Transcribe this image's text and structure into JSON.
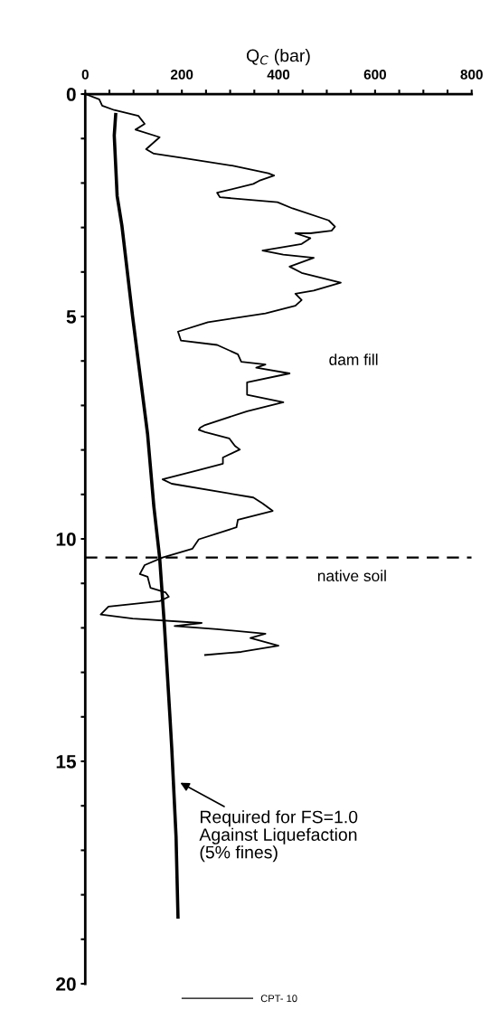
{
  "chart_data": {
    "type": "line",
    "xlabel": "Q$_{C}$ (bar)",
    "xlim": [
      0,
      800
    ],
    "xticks": [
      0,
      {
        "value": 50,
        "label": null
      },
      {
        "value": 100,
        "label": null
      },
      {
        "value": 150,
        "label": null
      },
      200,
      {
        "value": 250,
        "label": null
      },
      {
        "value": 300,
        "label": null
      },
      {
        "value": 350,
        "label": null
      },
      400,
      {
        "value": 450,
        "label": null
      },
      {
        "value": 500,
        "label": null
      },
      {
        "value": 550,
        "label": null
      },
      600,
      {
        "value": 650,
        "label": null
      },
      {
        "value": 700,
        "label": null
      },
      {
        "value": 750,
        "label": null
      },
      800
    ],
    "ylim": [
      20,
      0
    ],
    "yticks": [
      0,
      {
        "value": 1,
        "label": null
      },
      {
        "value": 2,
        "label": null
      },
      {
        "value": 3,
        "label": null
      },
      {
        "value": 4,
        "label": null
      },
      5,
      {
        "value": 6,
        "label": null
      },
      {
        "value": 7,
        "label": null
      },
      {
        "value": 8,
        "label": null
      },
      {
        "value": 9,
        "label": null
      },
      10,
      {
        "value": 11,
        "label": null
      },
      {
        "value": 12,
        "label": null
      },
      {
        "value": 13,
        "label": null
      },
      {
        "value": 14,
        "label": null
      },
      15,
      {
        "value": 16,
        "label": null
      },
      {
        "value": 17,
        "label": null
      },
      {
        "value": 18,
        "label": null
      },
      {
        "value": 19,
        "label": null
      },
      20
    ],
    "grid": false,
    "legend": "bottom",
    "marker": "none",
    "line_style": "solid",
    "series": [
      {
        "name": "CPT- 10",
        "color": "#000000",
        "x": [
          0,
          29,
          35,
          60,
          110,
          123,
          104,
          154,
          126,
          142,
          204,
          304,
          379,
          391,
          360,
          348,
          273,
          279,
          398,
          429,
          504,
          517,
          510,
          466,
          435,
          466,
          448,
          367,
          410,
          473,
          423,
          448,
          529,
          473,
          435,
          448,
          435,
          373,
          254,
          192,
          198,
          273,
          316,
          323,
          373,
          354,
          423,
          335,
          335,
          410,
          335,
          248,
          238,
          235,
          248,
          298,
          310,
          320,
          285,
          285,
          235,
          160,
          179,
          348,
          367,
          388,
          316,
          313,
          235,
          222,
          160,
          123,
          113,
          129,
          135,
          166,
          173,
          154,
          48,
          32,
          98,
          241,
          185,
          273,
          373,
          342,
          400,
          323,
          248
        ],
        "values": [
          0,
          0.12,
          0.26,
          0.36,
          0.49,
          0.67,
          0.8,
          0.97,
          1.24,
          1.34,
          1.44,
          1.61,
          1.78,
          1.83,
          1.95,
          2.02,
          2.22,
          2.32,
          2.43,
          2.57,
          2.84,
          2.98,
          3.07,
          3.13,
          3.13,
          3.24,
          3.37,
          3.52,
          3.61,
          3.68,
          3.88,
          4.02,
          4.24,
          4.42,
          4.49,
          4.63,
          4.76,
          4.93,
          5.13,
          5.34,
          5.54,
          5.64,
          5.85,
          6.02,
          6.08,
          6.15,
          6.28,
          6.48,
          6.76,
          6.93,
          7.13,
          7.44,
          7.5,
          7.55,
          7.6,
          7.74,
          7.91,
          7.99,
          8.17,
          8.31,
          8.45,
          8.66,
          8.76,
          9.07,
          9.2,
          9.37,
          9.57,
          9.74,
          10.01,
          10.22,
          10.42,
          10.59,
          10.79,
          10.85,
          11.1,
          11.2,
          11.3,
          11.4,
          11.52,
          11.7,
          11.79,
          11.89,
          11.96,
          12.03,
          12.13,
          12.23,
          12.4,
          12.54,
          12.61
        ]
      },
      {
        "color": "#000000",
        "x": [
          63,
          60,
          66,
          76,
          98,
          129,
          142,
          154,
          164,
          175,
          179,
          188,
          192
        ],
        "values": [
          0.46,
          0.93,
          2.29,
          2.97,
          5.0,
          7.64,
          9.27,
          10.42,
          11.97,
          13.94,
          14.69,
          16.7,
          18.5
        ]
      }
    ],
    "ref_lines": [
      {
        "axis": "y",
        "value": 10.42,
        "line_style": "dashed",
        "color": "#000000"
      }
    ],
    "annotations": [
      "dam fill",
      "native soil",
      {
        "text": "Required for FS=1.0\nAgainst Liquefaction\n(5% fines)",
        "x": 183,
        "y": 15.4
      }
    ]
  }
}
